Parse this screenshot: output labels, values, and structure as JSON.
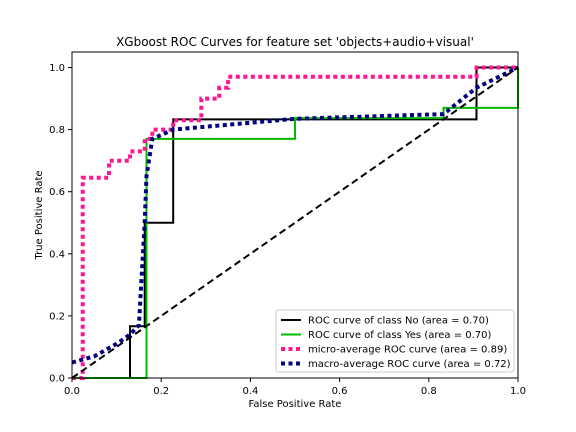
{
  "chart_data": {
    "type": "line",
    "title": "XGboost ROC Curves for feature set 'objects+audio+visual'",
    "xlabel": "False Positive Rate",
    "ylabel": "True Positive Rate",
    "xlim": [
      0.0,
      1.0
    ],
    "ylim": [
      0.0,
      1.05
    ],
    "xticks": [
      "0.0",
      "0.2",
      "0.4",
      "0.6",
      "0.8",
      "1.0"
    ],
    "yticks": [
      "0.0",
      "0.2",
      "0.4",
      "0.6",
      "0.8",
      "1.0"
    ],
    "grid": false,
    "legend_position": "lower-right",
    "series": [
      {
        "name": "ROC curve of class No (area = 0.70)",
        "color": "#000000",
        "style": "solid",
        "x": [
          0.0,
          0.13,
          0.13,
          0.163,
          0.163,
          0.227,
          0.227,
          0.907,
          0.907,
          1.0
        ],
        "y": [
          0.0,
          0.0,
          0.167,
          0.167,
          0.5,
          0.5,
          0.833,
          0.833,
          1.0,
          1.0
        ]
      },
      {
        "name": "ROC curve of class Yes (area = 0.70)",
        "color": "#00bb00",
        "style": "solid",
        "x": [
          0.0,
          0.167,
          0.167,
          0.167,
          0.227,
          0.5,
          0.5,
          0.833,
          0.833,
          1.0,
          1.0
        ],
        "y": [
          0.0,
          0.0,
          0.1,
          0.77,
          0.77,
          0.77,
          0.837,
          0.837,
          0.87,
          0.87,
          1.0
        ]
      },
      {
        "name": "micro-average ROC curve (area = 0.89)",
        "color": "#ff1493",
        "style": "dotted",
        "x": [
          0.0,
          0.024,
          0.024,
          0.083,
          0.083,
          0.13,
          0.13,
          0.163,
          0.163,
          0.18,
          0.18,
          0.227,
          0.227,
          0.29,
          0.29,
          0.33,
          0.33,
          0.35,
          0.35,
          0.907,
          0.907,
          1.0
        ],
        "y": [
          0.0,
          0.0,
          0.645,
          0.645,
          0.7,
          0.7,
          0.73,
          0.73,
          0.77,
          0.77,
          0.8,
          0.8,
          0.83,
          0.83,
          0.9,
          0.9,
          0.935,
          0.935,
          0.97,
          0.97,
          1.0,
          1.0
        ]
      },
      {
        "name": "macro-average ROC curve (area = 0.72)",
        "color": "#000080",
        "style": "dotted",
        "x": [
          0.0,
          0.05,
          0.1,
          0.13,
          0.15,
          0.163,
          0.167,
          0.18,
          0.227,
          0.5,
          0.833,
          0.907,
          1.0
        ],
        "y": [
          0.05,
          0.07,
          0.11,
          0.14,
          0.17,
          0.5,
          0.65,
          0.77,
          0.8,
          0.835,
          0.85,
          0.935,
          1.0
        ]
      },
      {
        "name": "",
        "color": "#000000",
        "style": "dashed",
        "x": [
          0.0,
          1.0
        ],
        "y": [
          0.0,
          1.0
        ]
      }
    ]
  }
}
